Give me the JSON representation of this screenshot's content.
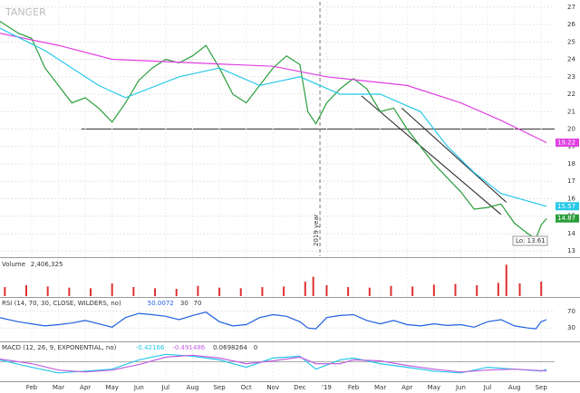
{
  "chart_data": [
    {
      "type": "line",
      "watermark": "TANGER",
      "annotations": [
        "2019 year",
        "Lo: 13.61"
      ],
      "xlim": [
        -1.18,
        19.5
      ],
      "ylim": [
        12.7,
        27.3
      ],
      "xticks": [
        {
          "value": 0,
          "label": "Feb"
        },
        {
          "value": 1,
          "label": "Mar"
        },
        {
          "value": 2,
          "label": "Apr"
        },
        {
          "value": 3,
          "label": "May"
        },
        {
          "value": 4,
          "label": "Jun"
        },
        {
          "value": 5,
          "label": "Jul"
        },
        {
          "value": 6,
          "label": "Aug"
        },
        {
          "value": 7,
          "label": "Sep"
        },
        {
          "value": 8,
          "label": "Oct"
        },
        {
          "value": 9,
          "label": "Nov"
        },
        {
          "value": 10,
          "label": "Dec"
        },
        {
          "value": 11,
          "label": "'19"
        },
        {
          "value": 12,
          "label": "Feb"
        },
        {
          "value": 13,
          "label": "Mar"
        },
        {
          "value": 14,
          "label": "Apr"
        },
        {
          "value": 15,
          "label": "May"
        },
        {
          "value": 16,
          "label": "Jun"
        },
        {
          "value": 17,
          "label": "Jul"
        },
        {
          "value": 18,
          "label": "Aug"
        },
        {
          "value": 19,
          "label": "Sep"
        }
      ],
      "yticks": [
        13,
        14,
        15,
        16,
        17,
        18,
        19,
        20,
        21,
        22,
        23,
        24,
        25,
        26,
        27
      ],
      "hlines": [
        20
      ],
      "vline": 10.75,
      "channel": [
        [
          [
            12.3,
            21.9
          ],
          [
            17.5,
            15.1
          ]
        ],
        [
          [
            13.8,
            21.2
          ],
          [
            17.7,
            15.8
          ]
        ]
      ],
      "series": [
        {
          "color": "#2a9d3a",
          "x": [
            -1.2,
            -0.5,
            0,
            0.5,
            1,
            1.5,
            2,
            2.5,
            3,
            3.5,
            4,
            4.5,
            5,
            5.5,
            6,
            6.5,
            7,
            7.5,
            8,
            8.5,
            9,
            9.5,
            10,
            10.3,
            10.6,
            11,
            11.5,
            12,
            12.5,
            13,
            13.5,
            14,
            14.5,
            15,
            15.5,
            16,
            16.5,
            17,
            17.5,
            18,
            18.5,
            18.8,
            19,
            19.2
          ],
          "values": [
            26.2,
            25.5,
            25.2,
            23.5,
            22.5,
            21.5,
            21.8,
            21.2,
            20.4,
            21.5,
            22.8,
            23.5,
            24,
            23.8,
            24.2,
            24.8,
            23.5,
            22,
            21.5,
            22.5,
            23.5,
            24.2,
            23.7,
            21,
            20.3,
            21.5,
            22.3,
            22.9,
            22.3,
            21,
            21.2,
            20,
            19,
            18,
            17.2,
            16.4,
            15.4,
            15.5,
            15.7,
            14.6,
            14,
            13.7,
            14.5,
            14.87
          ]
        },
        {
          "color": "#e040e0",
          "x": [
            -1.2,
            1,
            3,
            6,
            9,
            11,
            14,
            16,
            17.5,
            19.2
          ],
          "values": [
            25.5,
            24.8,
            24,
            23.8,
            23.6,
            23,
            22.5,
            21.5,
            20.5,
            19.22
          ]
        },
        {
          "color": "#27c8e8",
          "x": [
            -1.2,
            0.5,
            2.5,
            3.5,
            5.5,
            7,
            8.5,
            10,
            11.5,
            13,
            14.5,
            15.5,
            16.5,
            17.5,
            19.2
          ],
          "values": [
            25.8,
            24.5,
            22.5,
            21.8,
            23,
            23.5,
            22.5,
            23,
            22,
            22,
            21,
            19,
            17.5,
            16.3,
            15.57
          ]
        }
      ]
    },
    {
      "type": "bar",
      "title": "Volume",
      "reading": "2,406,325",
      "ylim": [
        0,
        6000000
      ],
      "color": "#e03030",
      "x": [
        -1,
        -0.2,
        0.6,
        1.4,
        2.2,
        3,
        3.8,
        4.6,
        5.4,
        6.2,
        7,
        7.8,
        8.6,
        9.4,
        10.2,
        10.5,
        11,
        11.8,
        12.6,
        13.4,
        14.2,
        15,
        15.8,
        16.6,
        17.4,
        17.7,
        18.2,
        19
      ],
      "values": [
        1500000,
        1800000,
        1600000,
        1400000,
        1300000,
        2100000,
        1500000,
        1300000,
        1200000,
        1700000,
        1400000,
        1300000,
        1500000,
        1600000,
        2400000,
        3200000,
        1800000,
        1500000,
        1400000,
        1700000,
        1600000,
        1900000,
        2000000,
        1800000,
        2200000,
        5200000,
        2100000,
        2406325
      ]
    },
    {
      "type": "line",
      "title": "RSI (14, 70, 30, CLOSE, WILDERS, no)",
      "readings": [
        "50.0072",
        "30",
        "70"
      ],
      "ylim": [
        0,
        100
      ],
      "yticks": [
        30,
        70
      ],
      "series": [
        {
          "color": "#2060e0",
          "x": [
            -1.2,
            -0.5,
            0,
            0.5,
            1,
            1.5,
            2,
            2.5,
            3,
            3.5,
            4,
            4.5,
            5,
            5.5,
            6,
            6.5,
            7,
            7.5,
            8,
            8.5,
            9,
            9.5,
            10,
            10.3,
            10.6,
            11,
            11.5,
            12,
            12.5,
            13,
            13.5,
            14,
            14.5,
            15,
            15.5,
            16,
            16.5,
            17,
            17.5,
            18,
            18.5,
            18.8,
            19,
            19.2
          ],
          "values": [
            55,
            45,
            40,
            35,
            38,
            42,
            48,
            40,
            32,
            55,
            65,
            62,
            58,
            50,
            60,
            68,
            45,
            35,
            38,
            55,
            62,
            58,
            45,
            30,
            28,
            55,
            60,
            62,
            48,
            40,
            48,
            38,
            35,
            40,
            36,
            38,
            32,
            45,
            50,
            35,
            30,
            28,
            45,
            50.0072
          ]
        }
      ]
    },
    {
      "type": "line",
      "title": "MACD (12, 26, 9, EXPONENTIAL, no)",
      "readings": [
        "-0.42166",
        "-0.491486",
        "0.0698264",
        "0"
      ],
      "ylim": [
        -1,
        1
      ],
      "hlines": [
        0
      ],
      "hist_color": "#d04040",
      "series": [
        {
          "color": "#27c8e8",
          "x": [
            -1.2,
            0,
            1,
            2,
            3,
            4,
            5,
            6,
            7,
            8,
            9,
            10,
            10.6,
            11.5,
            12,
            13,
            14,
            15,
            16,
            17,
            18,
            19,
            19.2
          ],
          "values": [
            0.1,
            -0.3,
            -0.6,
            -0.5,
            -0.4,
            0.1,
            0.4,
            0.3,
            0.1,
            -0.3,
            0.2,
            0.3,
            -0.4,
            0.1,
            0.2,
            -0.1,
            -0.3,
            -0.5,
            -0.6,
            -0.3,
            -0.4,
            -0.5,
            -0.42166
          ]
        },
        {
          "color": "#c060e0",
          "x": [
            -1.2,
            0,
            1,
            2,
            3,
            4,
            5,
            6,
            7,
            8,
            9,
            10,
            10.6,
            11.5,
            12,
            13,
            14,
            15,
            16,
            17,
            18,
            19,
            19.2
          ],
          "values": [
            0.15,
            -0.1,
            -0.45,
            -0.55,
            -0.45,
            -0.15,
            0.25,
            0.35,
            0.2,
            -0.1,
            0.05,
            0.25,
            -0.1,
            -0.1,
            0.1,
            0.05,
            -0.2,
            -0.4,
            -0.55,
            -0.45,
            -0.4,
            -0.48,
            -0.491486
          ]
        }
      ]
    }
  ]
}
